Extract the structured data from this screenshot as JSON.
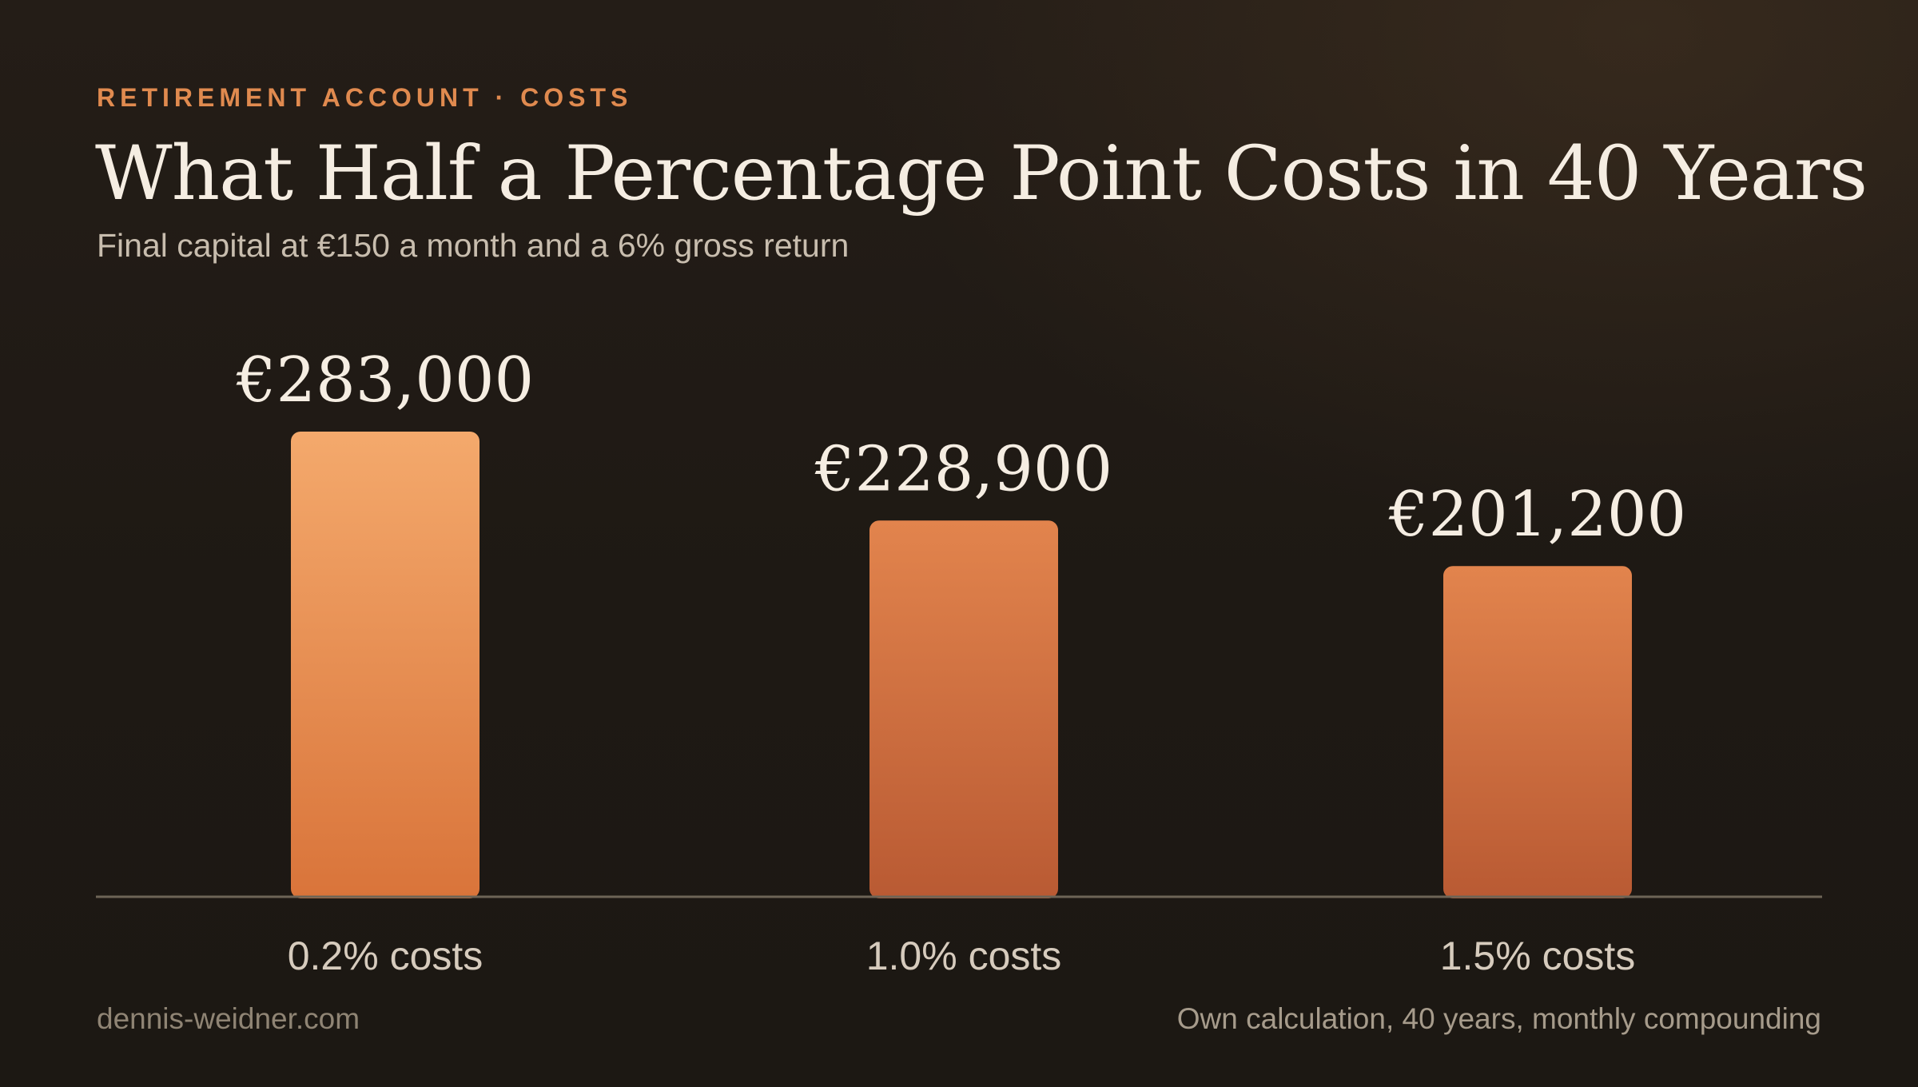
{
  "header": {
    "eyebrow": "RETIREMENT ACCOUNT · COSTS",
    "title": "What Half a Percentage Point Costs in 40 Years",
    "subtitle": "Final capital at €150 a month and a 6% gross return"
  },
  "footer": {
    "source_site": "dennis-weidner.com",
    "note": "Own calculation, 40 years, monthly compounding"
  },
  "colors": {
    "accent": "#e08a4f",
    "bar_top_light": "#f4a96c",
    "bar_bottom_light": "#d9743a",
    "bar_top": "#e2844d",
    "bar_bottom": "#b95a33",
    "baseline": "#6d6456"
  },
  "chart_data": {
    "type": "bar",
    "categories": [
      "0.2% costs",
      "1.0% costs",
      "1.5% costs"
    ],
    "values": [
      283000,
      228900,
      201200
    ],
    "value_labels": [
      "€283,000",
      "€228,900",
      "€201,200"
    ],
    "ylim": [
      0,
      283000
    ],
    "grid": false
  }
}
